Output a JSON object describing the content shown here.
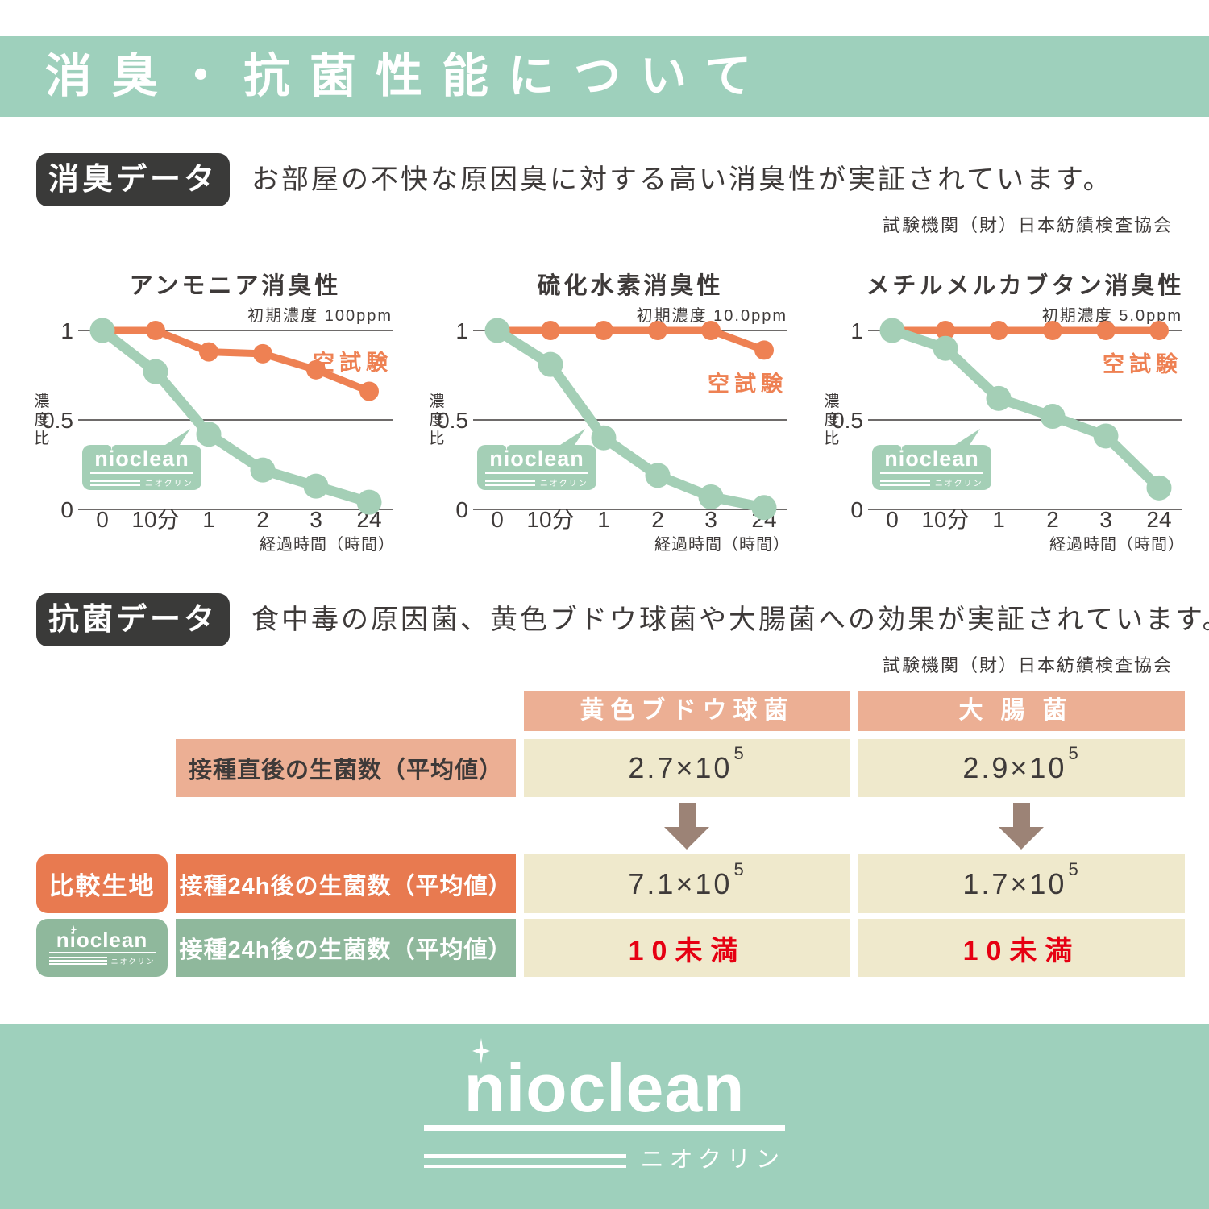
{
  "header": {
    "title": "消臭・抗菌性能について"
  },
  "palette": {
    "bar_green": "#9ed0bc",
    "chart_green": "#a4cfb6",
    "chart_orange": "#ee8153",
    "badge_dark": "#3a3a39",
    "table_salmon": "#ecaf94",
    "table_cream": "#efe9cc",
    "table_orange": "#e87a50",
    "table_green": "#8fb89c",
    "arrow_brown": "#9c8376",
    "text_dark": "#3e3a39",
    "alert_red": "#e60012"
  },
  "sections": {
    "deodorant": {
      "badge": "消臭データ",
      "description": "お部屋の不快な原因臭に対する高い消臭性が実証されています。",
      "agency": "試験機関（財）日本紡績検査協会"
    },
    "antibacterial": {
      "badge": "抗菌データ",
      "description": "食中毒の原因菌、黄色ブドウ球菌や大腸菌への効果が実証されています。",
      "agency": "試験機関（財）日本紡績検査協会"
    }
  },
  "chart_data": [
    {
      "type": "line",
      "title": "アンモニア消臭性",
      "initial_concentration": "初期濃度 100ppm",
      "x_ticks": [
        "0",
        "10分",
        "1",
        "2",
        "3",
        "24"
      ],
      "xlabel": "経過時間（時間）",
      "ylabel": "濃度比",
      "y_ticks": [
        {
          "label": "1",
          "value": 1
        },
        {
          "label": "0.5",
          "value": 0.5
        },
        {
          "label": "0",
          "value": 0
        }
      ],
      "ylim": [
        0,
        1
      ],
      "grid": true,
      "legend_y": 0.82,
      "series": [
        {
          "name": "空試験",
          "color": "#ee8153",
          "values": [
            1,
            1,
            0.88,
            0.87,
            0.78,
            0.66
          ]
        },
        {
          "name": "nioclean",
          "color": "#a4cfb6",
          "values": [
            1,
            0.77,
            0.42,
            0.22,
            0.13,
            0.04
          ]
        }
      ]
    },
    {
      "type": "line",
      "title": "硫化水素消臭性",
      "initial_concentration": "初期濃度 10.0ppm",
      "x_ticks": [
        "0",
        "10分",
        "1",
        "2",
        "3",
        "24"
      ],
      "xlabel": "経過時間（時間）",
      "ylabel": "濃度比",
      "y_ticks": [
        {
          "label": "1",
          "value": 1
        },
        {
          "label": "0.5",
          "value": 0.5
        },
        {
          "label": "0",
          "value": 0
        }
      ],
      "ylim": [
        0,
        1
      ],
      "grid": true,
      "legend_y": 0.7,
      "series": [
        {
          "name": "空試験",
          "color": "#ee8153",
          "values": [
            1,
            1,
            1,
            1,
            1,
            0.89
          ]
        },
        {
          "name": "nioclean",
          "color": "#a4cfb6",
          "values": [
            1,
            0.81,
            0.4,
            0.19,
            0.07,
            0.01
          ]
        }
      ]
    },
    {
      "type": "line",
      "title": "メチルメルカブタン消臭性",
      "initial_concentration": "初期濃度 5.0ppm",
      "x_ticks": [
        "0",
        "10分",
        "1",
        "2",
        "3",
        "24"
      ],
      "xlabel": "経過時間（時間）",
      "ylabel": "濃度比",
      "y_ticks": [
        {
          "label": "1",
          "value": 1
        },
        {
          "label": "0.5",
          "value": 0.5
        },
        {
          "label": "0",
          "value": 0
        }
      ],
      "ylim": [
        0,
        1
      ],
      "grid": true,
      "legend_y": 0.81,
      "series": [
        {
          "name": "空試験",
          "color": "#ee8153",
          "values": [
            1,
            1,
            1,
            1,
            1,
            1
          ]
        },
        {
          "name": "nioclean",
          "color": "#a4cfb6",
          "values": [
            1,
            0.9,
            0.62,
            0.52,
            0.41,
            0.12
          ]
        }
      ]
    }
  ],
  "table": {
    "columns": [
      "黄色ブドウ球菌",
      "大腸菌"
    ],
    "rows": [
      {
        "row_badge": "",
        "label": "接種直後の生菌数（平均値）",
        "cells": [
          {
            "base": "2.7×10",
            "exp": "5"
          },
          {
            "base": "2.9×10",
            "exp": "5"
          }
        ]
      },
      {
        "row_badge": "比較生地",
        "label": "接種24h後の生菌数（平均値）",
        "cells": [
          {
            "base": "7.1×10",
            "exp": "5"
          },
          {
            "base": "1.7×10",
            "exp": "5"
          }
        ]
      },
      {
        "row_badge": "nioclean",
        "label": "接種24h後の生菌数（平均値）",
        "cells": [
          {
            "text": "10未満"
          },
          {
            "text": "10未満"
          }
        ]
      }
    ]
  },
  "logo": {
    "wordmark": "nioclean",
    "katakana": "ニオクリン"
  }
}
